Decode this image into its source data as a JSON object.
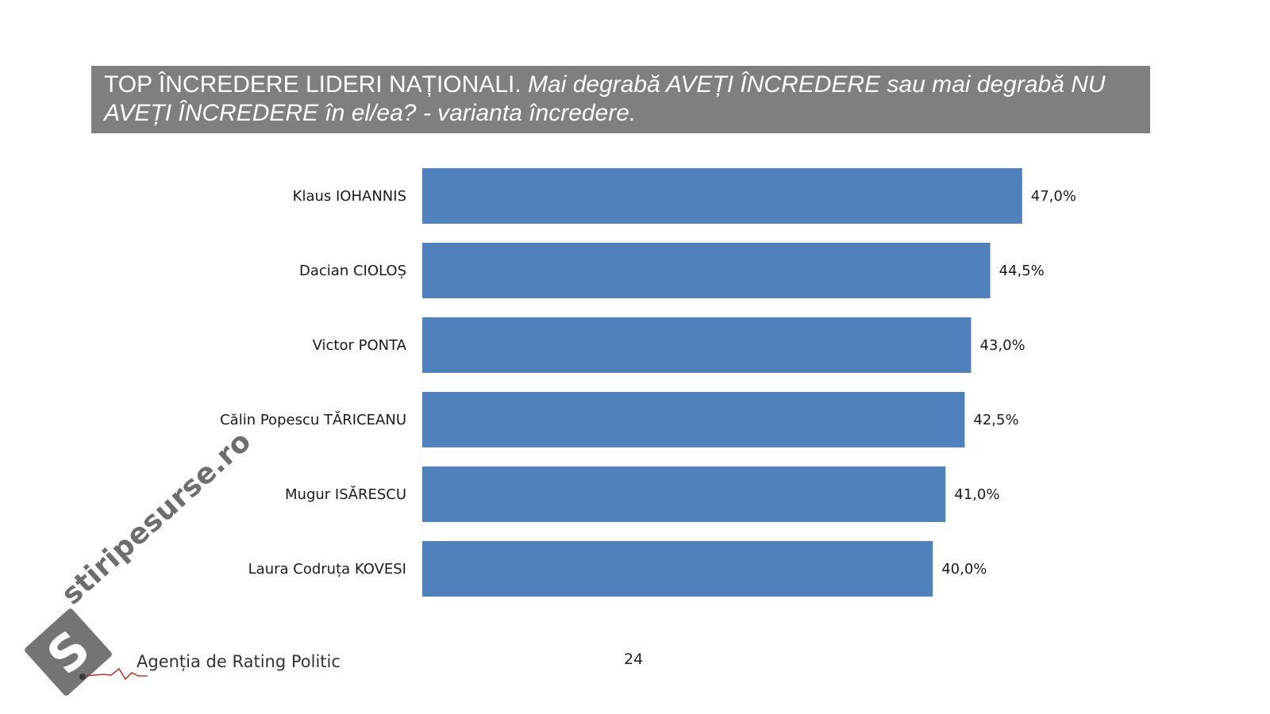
{
  "title": {
    "main": "TOP ÎNCREDERE LIDERI NAȚIONALI.",
    "question": "Mai degrabă AVEȚI ÎNCREDERE sau mai degrabă NU AVEȚI ÎNCREDERE  în el/ea?  - varianta încredere."
  },
  "chart_data": {
    "type": "bar",
    "orientation": "horizontal",
    "categories": [
      "Klaus IOHANNIS",
      "Dacian CIOLOȘ",
      "Victor PONTA",
      "Călin Popescu TĂRICEANU",
      "Mugur ISĂRESCU",
      "Laura Codruța KOVESI"
    ],
    "values": [
      47.0,
      44.5,
      43.0,
      42.5,
      41.0,
      40.0
    ],
    "value_labels": [
      "47,0%",
      "44,5%",
      "43,0%",
      "42,5%",
      "41,0%",
      "40,0%"
    ],
    "bar_color": "#4f81bd",
    "xlim": [
      0,
      50
    ],
    "grid": false
  },
  "footer": {
    "agency": "Agenția de Rating Politic",
    "page_number": "24"
  },
  "watermark": {
    "text": "stiripesurse.ro",
    "icon": "stiripesurse-s-logo-icon"
  }
}
